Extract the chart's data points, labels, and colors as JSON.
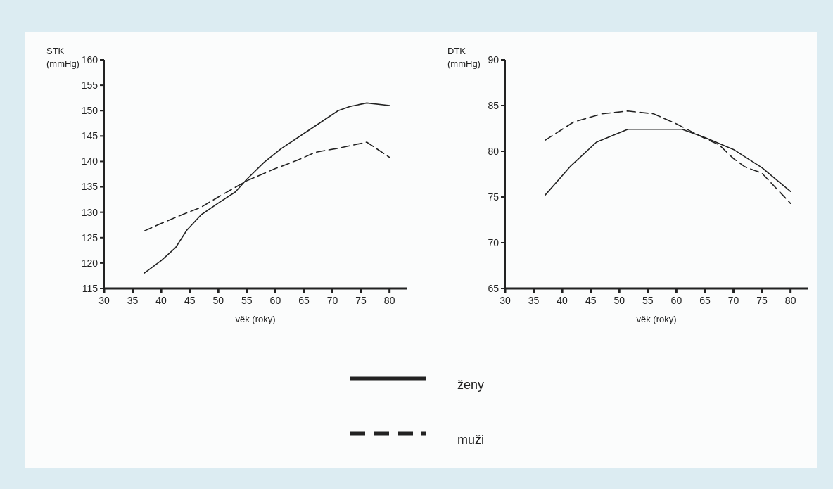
{
  "chart_data": [
    {
      "type": "line",
      "ylabel": "STK\n(mmHg)",
      "xlabel": "věk (roky)",
      "xlim": [
        30,
        83
      ],
      "xticks": [
        30,
        35,
        40,
        45,
        50,
        55,
        60,
        65,
        70,
        75,
        80
      ],
      "ylim": [
        115,
        160
      ],
      "yticks": [
        115,
        120,
        125,
        130,
        135,
        140,
        145,
        150,
        155,
        160
      ],
      "legend": "bottom",
      "series": [
        {
          "name": "ženy",
          "color": "#222222",
          "line_style": "solid",
          "x": [
            37,
            40,
            42.5,
            44.5,
            47,
            50,
            53,
            55,
            58,
            61,
            65,
            71,
            73,
            76,
            80
          ],
          "values": [
            118,
            120.5,
            123,
            126.5,
            129.5,
            131.8,
            134,
            136.5,
            139.8,
            142.5,
            145.5,
            150,
            150.8,
            151.5,
            151
          ]
        },
        {
          "name": "muži",
          "color": "#222222",
          "line_style": "dashed",
          "x": [
            37,
            40,
            43,
            47,
            50,
            55,
            60,
            64,
            67,
            71,
            76,
            80
          ],
          "values": [
            126.3,
            127.8,
            129.2,
            131,
            133,
            136.2,
            138.6,
            140.3,
            141.8,
            142.6,
            143.8,
            140.8
          ]
        }
      ]
    },
    {
      "type": "line",
      "ylabel": "DTK\n(mmHg)",
      "xlabel": "věk (roky)",
      "xlim": [
        30,
        83
      ],
      "xticks": [
        30,
        35,
        40,
        45,
        50,
        55,
        60,
        65,
        70,
        75,
        80
      ],
      "ylim": [
        65,
        90
      ],
      "yticks": [
        65,
        70,
        75,
        80,
        85,
        90
      ],
      "series": [
        {
          "color": "#222222",
          "line_style": "solid",
          "x": [
            37,
            41.5,
            46,
            51.5,
            61,
            65,
            70,
            75,
            80
          ],
          "values": [
            75.2,
            78.4,
            81,
            82.4,
            82.4,
            81.5,
            80.2,
            78.2,
            75.6
          ]
        },
        {
          "color": "#222222",
          "line_style": "dashed",
          "x": [
            37,
            42,
            47,
            51.5,
            56,
            60,
            65,
            67.5,
            70,
            72,
            75,
            80
          ],
          "values": [
            81.2,
            83.2,
            84.1,
            84.4,
            84.1,
            83,
            81.4,
            80.7,
            79.2,
            78.3,
            77.6,
            74.3
          ]
        }
      ]
    }
  ]
}
